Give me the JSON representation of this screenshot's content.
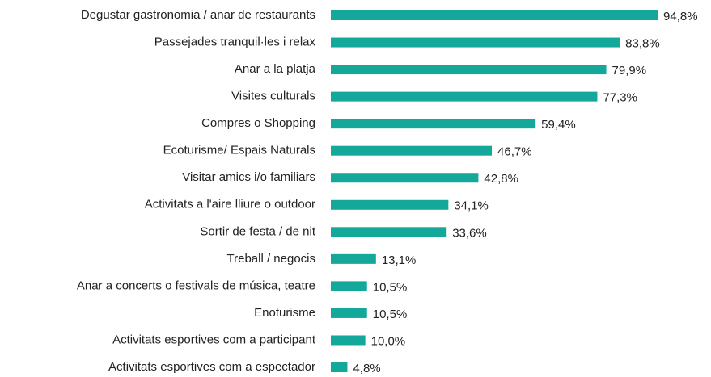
{
  "chart_data": {
    "type": "bar",
    "orientation": "horizontal",
    "categories": [
      "Degustar gastronomia / anar de restaurants",
      "Passejades tranquil·les i relax",
      "Anar a la platja",
      "Visites culturals",
      "Compres o Shopping",
      "Ecoturisme/ Espais Naturals",
      "Visitar amics i/o familiars",
      "Activitats a l'aire lliure o outdoor",
      "Sortir de festa / de nit",
      "Treball / negocis",
      "Anar a concerts o festivals de música, teatre",
      "Enoturisme",
      "Activitats esportives com a participant",
      "Activitats esportives com a espectador"
    ],
    "values": [
      94.8,
      83.8,
      79.9,
      77.3,
      59.4,
      46.7,
      42.8,
      34.1,
      33.6,
      13.1,
      10.5,
      10.5,
      10.0,
      4.8
    ],
    "value_labels": [
      "94,8%",
      "83,8%",
      "79,9%",
      "77,3%",
      "59,4%",
      "46,7%",
      "42,8%",
      "34,1%",
      "33,6%",
      "13,1%",
      "10,5%",
      "10,5%",
      "10,0%",
      "4,8%"
    ],
    "color": "#13a89a"
  }
}
